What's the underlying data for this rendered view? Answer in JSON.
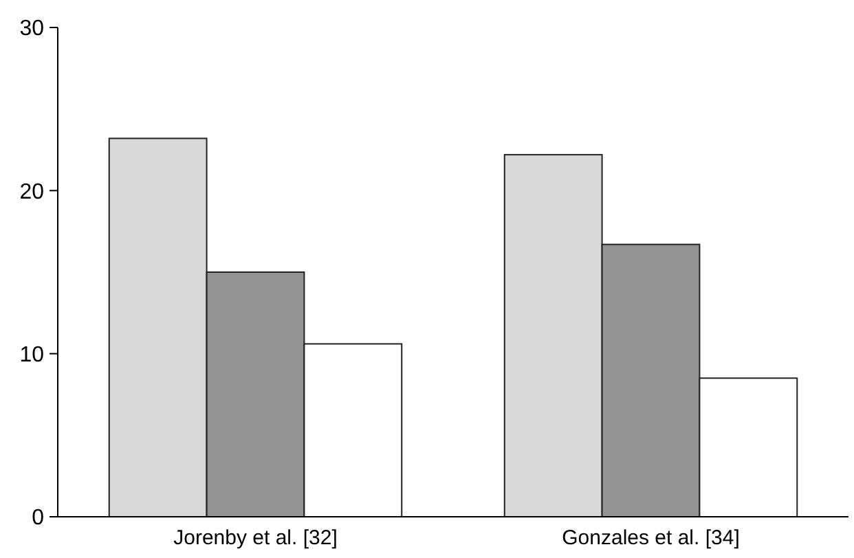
{
  "chart_data": {
    "type": "bar",
    "categories": [
      "Jorenby et al. [32]",
      "Gonzales et al. [34]"
    ],
    "series": [
      {
        "color": "#d9d9d9",
        "values": [
          23.2,
          22.2
        ]
      },
      {
        "color": "#939393",
        "values": [
          15.0,
          16.7
        ]
      },
      {
        "color": "#ffffff",
        "values": [
          10.6,
          8.5
        ]
      }
    ],
    "ylim": [
      0,
      30
    ],
    "yticks": [
      0,
      10,
      20,
      30
    ],
    "grid": false
  }
}
